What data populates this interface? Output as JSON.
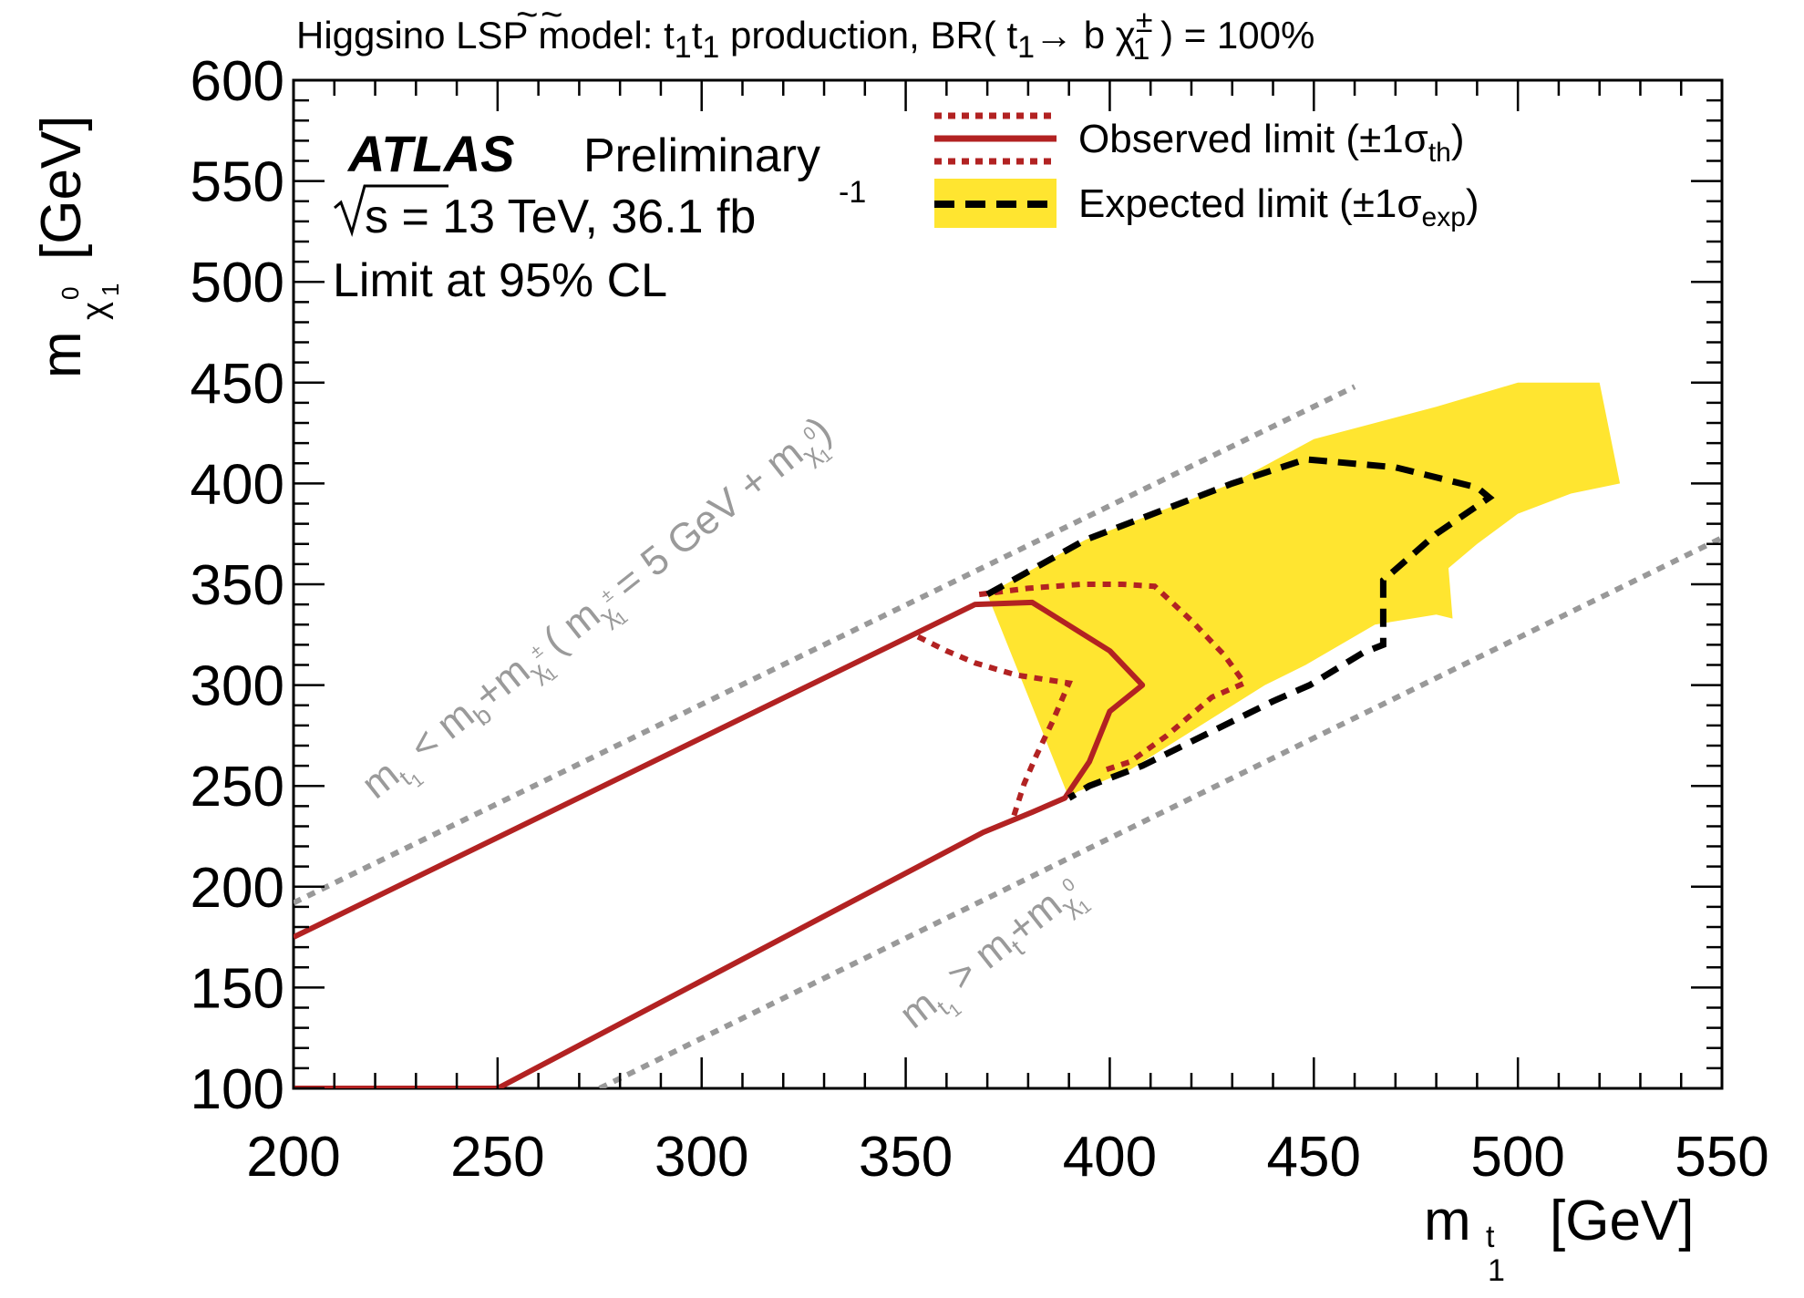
{
  "chart_data": {
    "type": "line",
    "title": "Higgsino LSP model: t̃₁t̃₁ production, BR( t̃₁→ b χ̃±₁ ) = 100%",
    "title_parts": {
      "prefix": "Higgsino LSP model: ",
      "t": "t",
      "tilde": "~",
      "sub1": "1",
      "production": " production, BR( ",
      "arrow": "→ b ",
      "chi": "χ",
      "pm": "±",
      "close": " ) = 100%"
    },
    "xlabel": "m",
    "xlabel_unit": "[GeV]",
    "xlabel_sub": "t",
    "xlabel_subsub": "1",
    "ylabel": "m",
    "ylabel_unit": "[GeV]",
    "ylabel_sub": "χ",
    "ylabel_sup": "0",
    "ylabel_subsub": "1",
    "xlim": [
      200,
      550
    ],
    "ylim": [
      100,
      600
    ],
    "x_ticks": [
      200,
      250,
      300,
      350,
      400,
      450,
      500,
      550
    ],
    "y_ticks": [
      100,
      150,
      200,
      250,
      300,
      350,
      400,
      450,
      500,
      550,
      600
    ],
    "experiment": "ATLAS",
    "status": "Preliminary",
    "energy_label": "s = 13 TeV, 36.1 fb",
    "energy_sup": "-1",
    "cl_label": "Limit at 95% CL",
    "legend": {
      "position": "top-right",
      "observed": "Observed limit (±1σ",
      "observed_sub": "th",
      "expected": "Expected limit (±1σ",
      "expected_sub": "exp",
      "close_paren": ")"
    },
    "annotations": {
      "upper_main": "m",
      "upper_lt": " < m",
      "upper_b": "b",
      "upper_plus": "+m",
      "upper_paren": " ( m",
      "upper_eq": " = 5 GeV + m",
      "upper_close": ")",
      "lower_main": "m",
      "lower_gt": " > m",
      "lower_t": "t",
      "lower_plus": "+m",
      "sym_t": "t",
      "sym_1": "1",
      "sym_chi": "χ",
      "sym_pm": "±",
      "sym_0": "0"
    },
    "colors": {
      "observed": "#b22222",
      "expected": "#000000",
      "band": "#ffe530",
      "kinematic": "#999999"
    },
    "series": [
      {
        "name": "Observed limit",
        "style": "solid",
        "points": [
          [
            200,
            175
          ],
          [
            367,
            340
          ],
          [
            381,
            341
          ],
          [
            400,
            317
          ],
          [
            408,
            300
          ],
          [
            400,
            287
          ],
          [
            395,
            262
          ],
          [
            391,
            250
          ],
          [
            389,
            244
          ],
          [
            381,
            237
          ],
          [
            369,
            227
          ],
          [
            250,
            100
          ],
          [
            200,
            100
          ]
        ]
      },
      {
        "name": "Observed limit +1σ_th",
        "style": "dotted",
        "points": [
          [
            368,
            345
          ],
          [
            380,
            348
          ],
          [
            393,
            350
          ],
          [
            403,
            350
          ],
          [
            411,
            349
          ],
          [
            420,
            332
          ],
          [
            428,
            315
          ],
          [
            433,
            301
          ],
          [
            425,
            294
          ],
          [
            414,
            275
          ],
          [
            405,
            262
          ],
          [
            399,
            258
          ]
        ]
      },
      {
        "name": "Observed limit -1σ_th",
        "style": "dotted",
        "points": [
          [
            353,
            324
          ],
          [
            360,
            317
          ],
          [
            367,
            311
          ],
          [
            377,
            305
          ],
          [
            390,
            301
          ],
          [
            386,
            282
          ],
          [
            382,
            265
          ],
          [
            379,
            251
          ],
          [
            376,
            232
          ]
        ]
      },
      {
        "name": "Expected limit",
        "style": "dashed",
        "points": [
          [
            370,
            345
          ],
          [
            394,
            372
          ],
          [
            430,
            400
          ],
          [
            448,
            412
          ],
          [
            470,
            408
          ],
          [
            490,
            398
          ],
          [
            493,
            393
          ],
          [
            480,
            375
          ],
          [
            467,
            352
          ],
          [
            467,
            320
          ],
          [
            462,
            316
          ],
          [
            449,
            300
          ],
          [
            440,
            292
          ],
          [
            408,
            260
          ],
          [
            395,
            250
          ],
          [
            390,
            244
          ]
        ]
      },
      {
        "name": "Expected ±1σ_exp band",
        "style": "fill",
        "points": [
          [
            370,
            345
          ],
          [
            394,
            372
          ],
          [
            430,
            400
          ],
          [
            450,
            422
          ],
          [
            480,
            438
          ],
          [
            500,
            450
          ],
          [
            520,
            450
          ],
          [
            525,
            400
          ],
          [
            513,
            395
          ],
          [
            500,
            385
          ],
          [
            490,
            370
          ],
          [
            483,
            358
          ],
          [
            484,
            333
          ],
          [
            480,
            335
          ],
          [
            465,
            330
          ],
          [
            448,
            310
          ],
          [
            438,
            300
          ],
          [
            405,
            258
          ],
          [
            392,
            247
          ],
          [
            390,
            244
          ]
        ]
      },
      {
        "name": "m_t1 = m_b + m_chi1pm (kinematic limit)",
        "style": "grey-dotted",
        "points": [
          [
            200,
            192
          ],
          [
            460,
            448
          ]
        ]
      },
      {
        "name": "m_t1 = m_t + m_chi10 (kinematic limit)",
        "style": "grey-dotted",
        "points": [
          [
            275,
            100
          ],
          [
            550,
            373
          ]
        ]
      }
    ]
  }
}
